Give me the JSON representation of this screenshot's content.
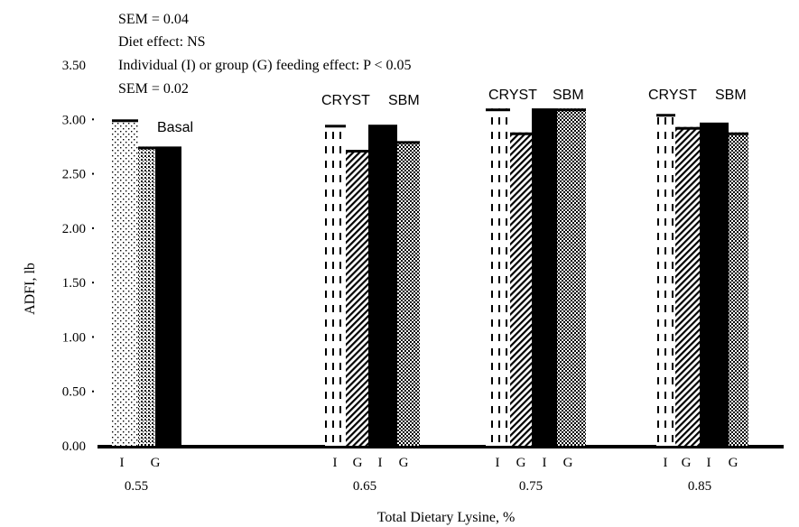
{
  "chart_data": {
    "type": "bar",
    "title": "",
    "xlabel": "Total Dietary Lysine, %",
    "ylabel": "ADFI, lb",
    "ylim": [
      0,
      3.5
    ],
    "yticks": [
      "0.00",
      "0.50",
      "1.00",
      "1.50",
      "2.00",
      "2.50",
      "3.00",
      "3.50"
    ],
    "categories": [
      "0.55",
      "0.65",
      "0.75",
      "0.85"
    ],
    "notes": [
      "SEM = 0.04",
      "Diet effect: NS",
      "Individual (I) or group (G) feeding effect: P < 0.05",
      "SEM = 0.02"
    ],
    "groups": [
      {
        "category": "0.55",
        "labels": [
          "Basal"
        ],
        "bars": [
          {
            "diet": "Basal",
            "feeding": "I",
            "value": 3.0,
            "pattern": "dots"
          },
          {
            "diet": "Basal",
            "feeding": "G",
            "value": 2.75,
            "pattern": "checker-light"
          },
          {
            "diet": "Basal",
            "feeding": "",
            "value": 2.75,
            "pattern": "solid"
          }
        ]
      },
      {
        "category": "0.65",
        "labels": [
          "CRYST",
          "SBM"
        ],
        "bars": [
          {
            "diet": "CRYST",
            "feeding": "I",
            "value": 2.95,
            "pattern": "dashed"
          },
          {
            "diet": "CRYST",
            "feeding": "G",
            "value": 2.72,
            "pattern": "hatch"
          },
          {
            "diet": "SBM",
            "feeding": "I",
            "value": 2.95,
            "pattern": "solid"
          },
          {
            "diet": "SBM",
            "feeding": "G",
            "value": 2.8,
            "pattern": "checker"
          }
        ]
      },
      {
        "category": "0.75",
        "labels": [
          "CRYST",
          "SBM"
        ],
        "bars": [
          {
            "diet": "CRYST",
            "feeding": "I",
            "value": 3.1,
            "pattern": "dashed"
          },
          {
            "diet": "CRYST",
            "feeding": "G",
            "value": 2.88,
            "pattern": "hatch"
          },
          {
            "diet": "SBM",
            "feeding": "I",
            "value": 3.1,
            "pattern": "solid"
          },
          {
            "diet": "SBM",
            "feeding": "G",
            "value": 3.1,
            "pattern": "checker"
          }
        ]
      },
      {
        "category": "0.85",
        "labels": [
          "CRYST",
          "SBM"
        ],
        "bars": [
          {
            "diet": "CRYST",
            "feeding": "I",
            "value": 3.05,
            "pattern": "dashed"
          },
          {
            "diet": "CRYST",
            "feeding": "G",
            "value": 2.93,
            "pattern": "hatch"
          },
          {
            "diet": "SBM",
            "feeding": "I",
            "value": 2.97,
            "pattern": "solid"
          },
          {
            "diet": "SBM",
            "feeding": "G",
            "value": 2.88,
            "pattern": "checker"
          }
        ]
      }
    ],
    "grid": false,
    "legend": "none"
  }
}
